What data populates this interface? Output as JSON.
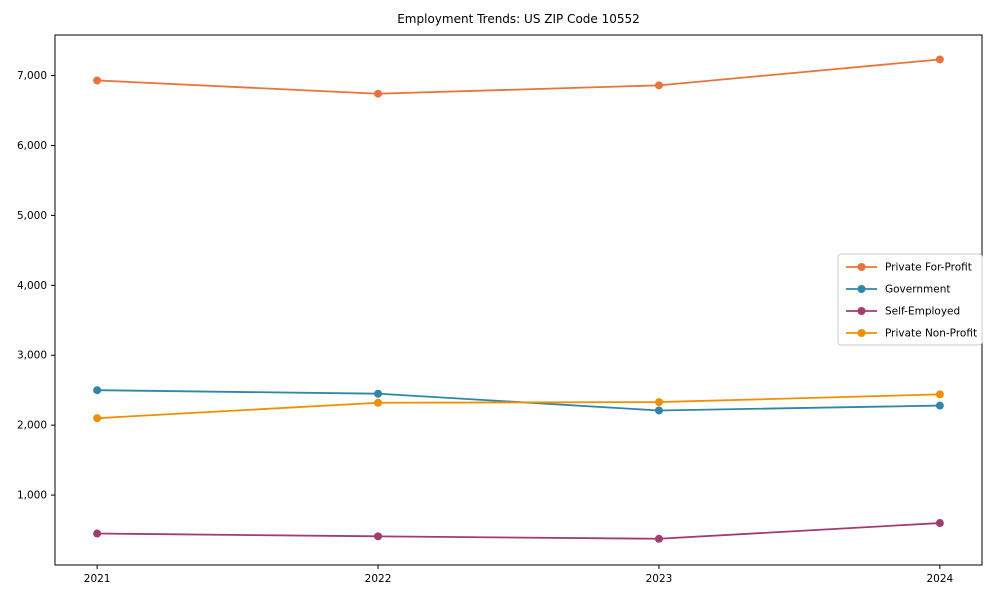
{
  "chart_data": {
    "type": "line",
    "title": "Employment Trends: US ZIP Code 10552",
    "x": [
      "2021",
      "2022",
      "2023",
      "2024"
    ],
    "series": [
      {
        "name": "Private For-Profit",
        "values": [
          6930,
          6740,
          6860,
          7230
        ],
        "color": "#E8743B"
      },
      {
        "name": "Government",
        "values": [
          2500,
          2450,
          2210,
          2280
        ],
        "color": "#2E86AB"
      },
      {
        "name": "Self-Employed",
        "values": [
          450,
          410,
          375,
          600
        ],
        "color": "#A23B72"
      },
      {
        "name": "Private Non-Profit",
        "values": [
          2100,
          2320,
          2330,
          2440
        ],
        "color": "#F18F01"
      }
    ],
    "xlabel": "",
    "ylabel": "",
    "ylim": [
      0,
      7580
    ],
    "yticks": [
      1000,
      2000,
      3000,
      4000,
      5000,
      6000,
      7000
    ],
    "ytick_format": "comma",
    "grid": false,
    "marker": "circle",
    "legend_position": "center-right",
    "axis_color": "#000000",
    "legend_edge_color": "#cccccc",
    "legend_bg_color": "#ffffff"
  }
}
